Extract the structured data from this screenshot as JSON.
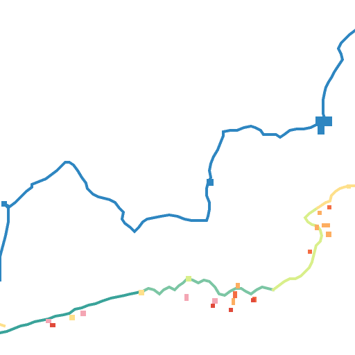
{
  "map": {
    "kind": "map-tile",
    "background_color": "#ffffff",
    "layers": [
      {
        "name": "blue-route",
        "color": "#2e86c1"
      },
      {
        "name": "gradient-route",
        "colors": [
          "#3aa39a",
          "#7cc6a4",
          "#d9ef8b",
          "#fee08b",
          "#fdae61",
          "#f46d43",
          "#d73027"
        ]
      },
      {
        "name": "pink-markers",
        "color": "#f4a6b4"
      },
      {
        "name": "red-markers",
        "color": "#e04a3a"
      }
    ]
  }
}
